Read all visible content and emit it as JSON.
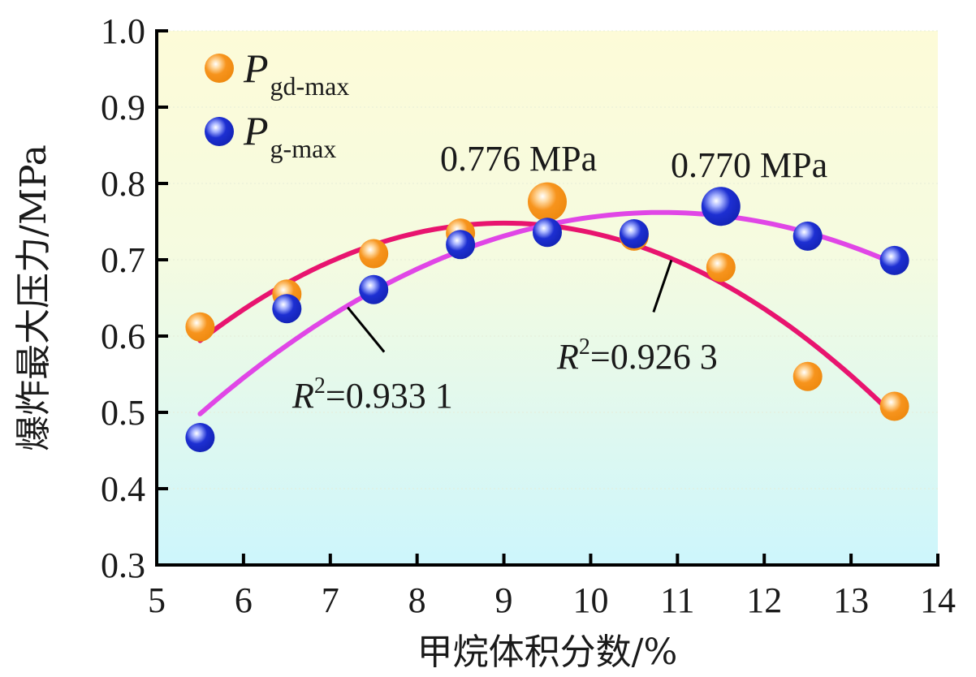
{
  "chart_data": {
    "type": "scatter",
    "title": "",
    "xlabel": "甲烷体积分数/%",
    "ylabel": "爆炸最大压力/MPa",
    "xlim": [
      5,
      14
    ],
    "ylim": [
      0.3,
      1.0
    ],
    "xticks": [
      5,
      6,
      7,
      8,
      9,
      10,
      11,
      12,
      13,
      14
    ],
    "xtick_labels": [
      "5",
      "6",
      "7",
      "8",
      "9",
      "10",
      "11",
      "12",
      "13",
      "14"
    ],
    "yticks": [
      0.3,
      0.4,
      0.5,
      0.6,
      0.7,
      0.8,
      0.9,
      1.0
    ],
    "ytick_labels": [
      "0.3",
      "0.4",
      "0.5",
      "0.6",
      "0.7",
      "0.8",
      "0.9",
      "1.0"
    ],
    "grid": false,
    "legend_position": "top-left",
    "background_gradient": [
      "#fdfbd8",
      "#cdf6fc"
    ],
    "series": [
      {
        "name": "Pgd-max",
        "legend_main": "P",
        "legend_sub": "gd-max",
        "color": "#f5901a",
        "x": [
          5.5,
          6.5,
          7.5,
          8.5,
          9.5,
          10.5,
          11.5,
          12.5,
          13.5
        ],
        "y": [
          0.612,
          0.655,
          0.708,
          0.735,
          0.776,
          0.731,
          0.69,
          0.547,
          0.508
        ],
        "highlight_index": 4,
        "fit": {
          "type": "quadratic",
          "color": "#e8146f",
          "x_range": [
            5.5,
            13.5
          ],
          "points": [
            [
              5.5,
              0.594
            ],
            [
              9.0,
              0.748
            ],
            [
              13.5,
              0.495
            ]
          ],
          "r2_label_main": "R",
          "r2_label_sup": "2",
          "r2_label_value": "=0.926 3"
        }
      },
      {
        "name": "Pg-max",
        "legend_main": "P",
        "legend_sub": "g-max",
        "color": "#1a2fcf",
        "x": [
          5.5,
          6.5,
          7.5,
          8.5,
          9.5,
          10.5,
          11.5,
          12.5,
          13.5
        ],
        "y": [
          0.467,
          0.636,
          0.661,
          0.72,
          0.736,
          0.734,
          0.77,
          0.731,
          0.699
        ],
        "highlight_index": 6,
        "fit": {
          "type": "quadratic",
          "color": "#e046e6",
          "x_range": [
            5.5,
            13.5
          ],
          "points": [
            [
              5.5,
              0.498
            ],
            [
              10.8,
              0.762
            ],
            [
              13.5,
              0.695
            ]
          ],
          "r2_label_main": "R",
          "r2_label_sup": "2",
          "r2_label_value": "=0.933 1"
        }
      }
    ],
    "annotations": [
      {
        "text": "0.776 MPa",
        "series": "Pgd-max",
        "x": 9.5,
        "y": 0.776
      },
      {
        "text": "0.770 MPa",
        "series": "Pg-max",
        "x": 11.5,
        "y": 0.77
      }
    ]
  }
}
